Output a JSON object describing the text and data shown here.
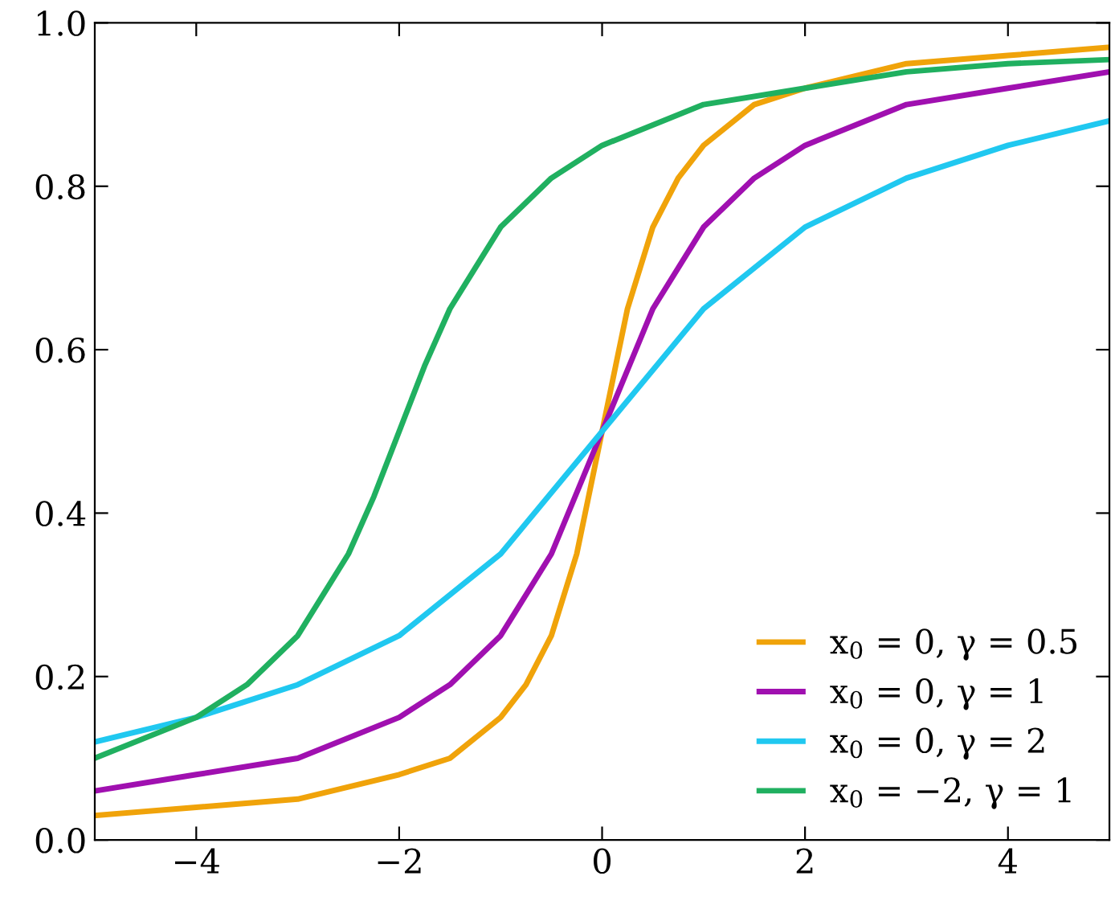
{
  "chart_data": {
    "type": "line",
    "xlim": [
      -5,
      5
    ],
    "ylim": [
      0,
      1
    ],
    "xticks": [
      {
        "value": -4,
        "label": "−4"
      },
      {
        "value": -2,
        "label": "−2"
      },
      0,
      2,
      4
    ],
    "yticks": [
      {
        "value": 0,
        "label": "0.0"
      },
      0.2,
      0.4,
      0.6,
      0.8,
      {
        "value": 1,
        "label": "1.0"
      }
    ],
    "grid": false,
    "legend": "bottom right",
    "marker": "none",
    "line_style": "solid",
    "series": [
      {
        "name": "x$_{0}$ = 0, γ = 0.5",
        "color": "#f0a30a",
        "x": [
          -5,
          -4,
          -3,
          -2,
          -1.5,
          -1,
          -0.75,
          -0.5,
          -0.25,
          -0.1,
          0,
          0.1,
          0.25,
          0.5,
          0.75,
          1,
          1.5,
          2,
          3,
          4,
          5
        ],
        "values": [
          0.03,
          0.04,
          0.05,
          0.08,
          0.1,
          0.15,
          0.19,
          0.25,
          0.35,
          0.44,
          0.5,
          0.56,
          0.65,
          0.75,
          0.81,
          0.85,
          0.9,
          0.92,
          0.95,
          0.96,
          0.97
        ]
      },
      {
        "name": "x$_{0}$ = 0, γ = 1",
        "color": "#a010b0",
        "x": [
          -5,
          -4,
          -3,
          -2,
          -1.5,
          -1,
          -0.5,
          0,
          0.5,
          1,
          1.5,
          2,
          3,
          4,
          5
        ],
        "values": [
          0.06,
          0.08,
          0.1,
          0.15,
          0.19,
          0.25,
          0.35,
          0.5,
          0.65,
          0.75,
          0.81,
          0.85,
          0.9,
          0.92,
          0.94
        ]
      },
      {
        "name": "x$_{0}$ = 0, γ = 2",
        "color": "#20c8f0",
        "x": [
          -5,
          -4,
          -3,
          -2,
          -1,
          0,
          1,
          2,
          3,
          4,
          5
        ],
        "values": [
          0.12,
          0.15,
          0.19,
          0.25,
          0.35,
          0.5,
          0.65,
          0.75,
          0.81,
          0.85,
          0.88
        ]
      },
      {
        "name": "x$_{0}$ = −2, γ = 1",
        "color": "#20b060",
        "x": [
          -5,
          -4,
          -3.5,
          -3,
          -2.75,
          -2.5,
          -2.25,
          -2,
          -1.75,
          -1.5,
          -1.25,
          -1,
          -0.5,
          0,
          1,
          2,
          3,
          4,
          5
        ],
        "values": [
          0.1,
          0.15,
          0.19,
          0.25,
          0.3,
          0.35,
          0.42,
          0.5,
          0.58,
          0.65,
          0.7,
          0.75,
          0.81,
          0.85,
          0.9,
          0.92,
          0.94,
          0.95,
          0.955
        ]
      }
    ]
  }
}
